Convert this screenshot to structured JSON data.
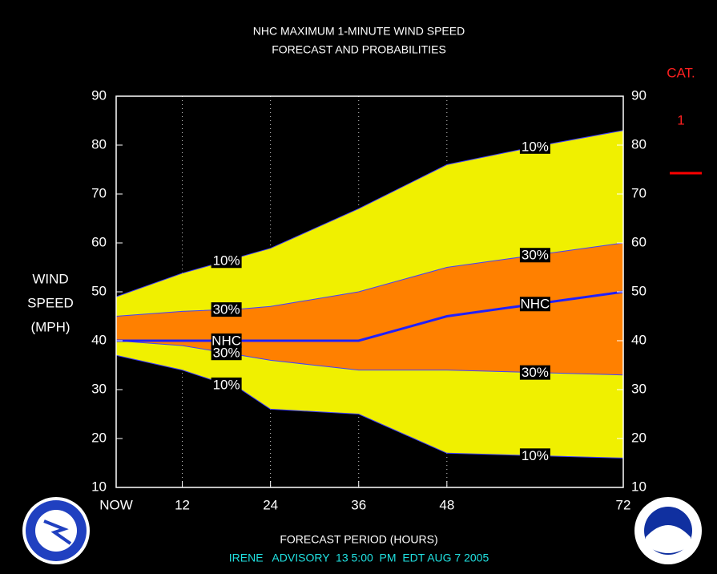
{
  "chart_data": {
    "type": "band",
    "title": [
      "NHC MAXIMUM 1-MINUTE WIND SPEED",
      "FORECAST AND PROBABILITIES"
    ],
    "ylabel": [
      "WIND",
      "SPEED",
      "(MPH)"
    ],
    "xlabel": "FORECAST PERIOD (HOURS)",
    "footer": "IRENE   ADVISORY  13 5:00  PM  EDT AUG 7 2005",
    "category": {
      "title": "CAT.",
      "value": "1"
    },
    "x": [
      3,
      12,
      20,
      24,
      36,
      48,
      60,
      72
    ],
    "xlim": [
      3,
      72
    ],
    "xticks": [
      {
        "value": 3,
        "label": "NOW"
      },
      12,
      24,
      36,
      48,
      72
    ],
    "ylim": [
      10,
      90
    ],
    "yticks": [
      10,
      20,
      30,
      40,
      50,
      60,
      70,
      80,
      90
    ],
    "grid": true,
    "bands": [
      {
        "name": "10%",
        "color": "#f0f000",
        "upper": [
          49,
          53.8,
          57.2,
          58.9,
          67,
          76,
          79.7,
          83
        ],
        "lower": [
          37,
          34,
          30,
          26,
          25,
          17,
          16.5,
          16
        ]
      },
      {
        "name": "30%",
        "color": "#ff8000",
        "upper": [
          45,
          46,
          46.5,
          47,
          50,
          55,
          57.5,
          60
        ],
        "lower": [
          40,
          39,
          37,
          36,
          34,
          34,
          33.5,
          33
        ]
      }
    ],
    "series": [
      {
        "name": "NHC",
        "color": "#2020ff",
        "values": [
          40,
          40,
          40,
          40,
          40,
          45,
          47.5,
          50
        ]
      }
    ]
  }
}
